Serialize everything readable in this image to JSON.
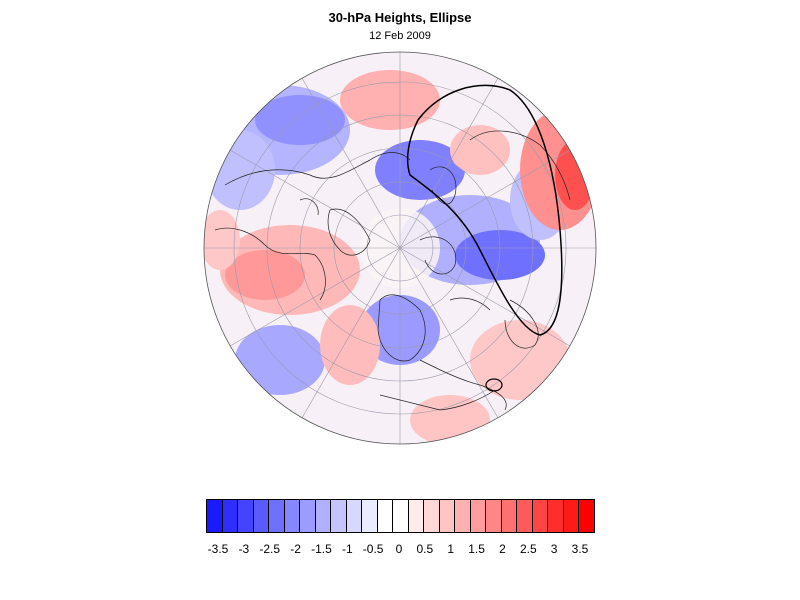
{
  "title": "30-hPa Heights, Ellipse",
  "subtitle": "12 Feb 2009",
  "colorbar": {
    "labels": [
      "-3.5",
      "-3",
      "-2.5",
      "-2",
      "-1.5",
      "-1",
      "-0.5",
      "0",
      "0.5",
      "1",
      "1.5",
      "2",
      "2.5",
      "3",
      "3.5"
    ],
    "colors": [
      "#1a1aff",
      "#2e2eff",
      "#4444ff",
      "#5a5aff",
      "#7070ff",
      "#8686ff",
      "#9c9cff",
      "#b0b0ff",
      "#c4c4ff",
      "#d8d8ff",
      "#ebebff",
      "#ffffff",
      "#ffffff",
      "#ffebeb",
      "#ffd8d8",
      "#ffc4c4",
      "#ffb0b0",
      "#ff9c9c",
      "#ff8686",
      "#ff7070",
      "#ff5a5a",
      "#ff4444",
      "#ff2e2e",
      "#ff1a1a",
      "#ff0000"
    ]
  },
  "map": {
    "projection": "north-polar",
    "field_colors": {
      "negative": "#7070ff",
      "positive": "#ff7070",
      "neutral": "#f4f0f8"
    }
  }
}
